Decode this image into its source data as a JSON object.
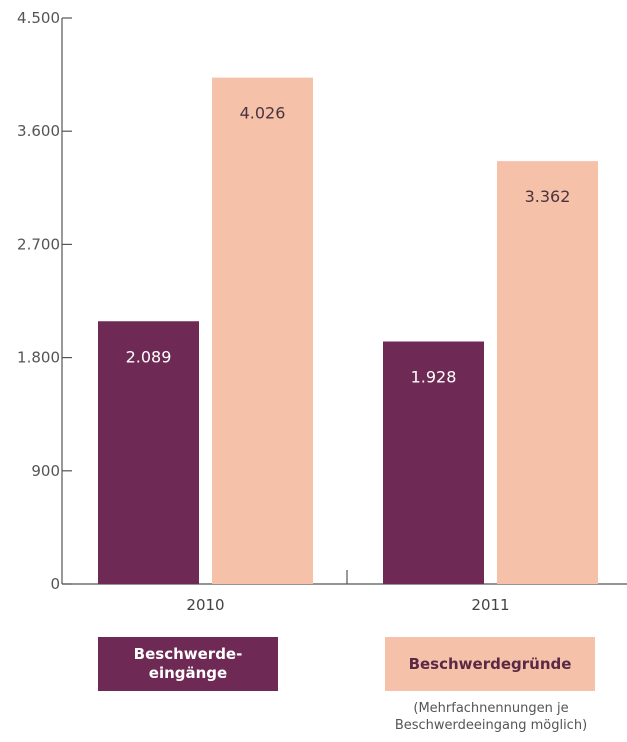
{
  "chart_data": {
    "type": "bar",
    "categories": [
      "2010",
      "2011"
    ],
    "series": [
      {
        "name": "Beschwerde-\neingänge",
        "values": [
          2089,
          1928
        ],
        "labels": [
          "2.089",
          "1.928"
        ],
        "color": "#6e2a54",
        "label_color": "#ffffff"
      },
      {
        "name": "Beschwerdegründe",
        "values": [
          4026,
          3362
        ],
        "labels": [
          "4.026",
          "3.362"
        ],
        "color": "#f6c1a9",
        "label_color": "#4a3340"
      }
    ],
    "y_ticks": [
      0,
      900,
      1800,
      2700,
      3600,
      4500
    ],
    "y_tick_labels": [
      "0",
      "900",
      "1.800",
      "2.700",
      "3.600",
      "4.500"
    ],
    "ylim": [
      0,
      4500
    ],
    "grid": false,
    "legend_position": "bottom",
    "legend_note": "(Mehrfachnennungen je\nBeschwerdeeingang möglich)",
    "title": "",
    "xlabel": "",
    "ylabel": ""
  }
}
